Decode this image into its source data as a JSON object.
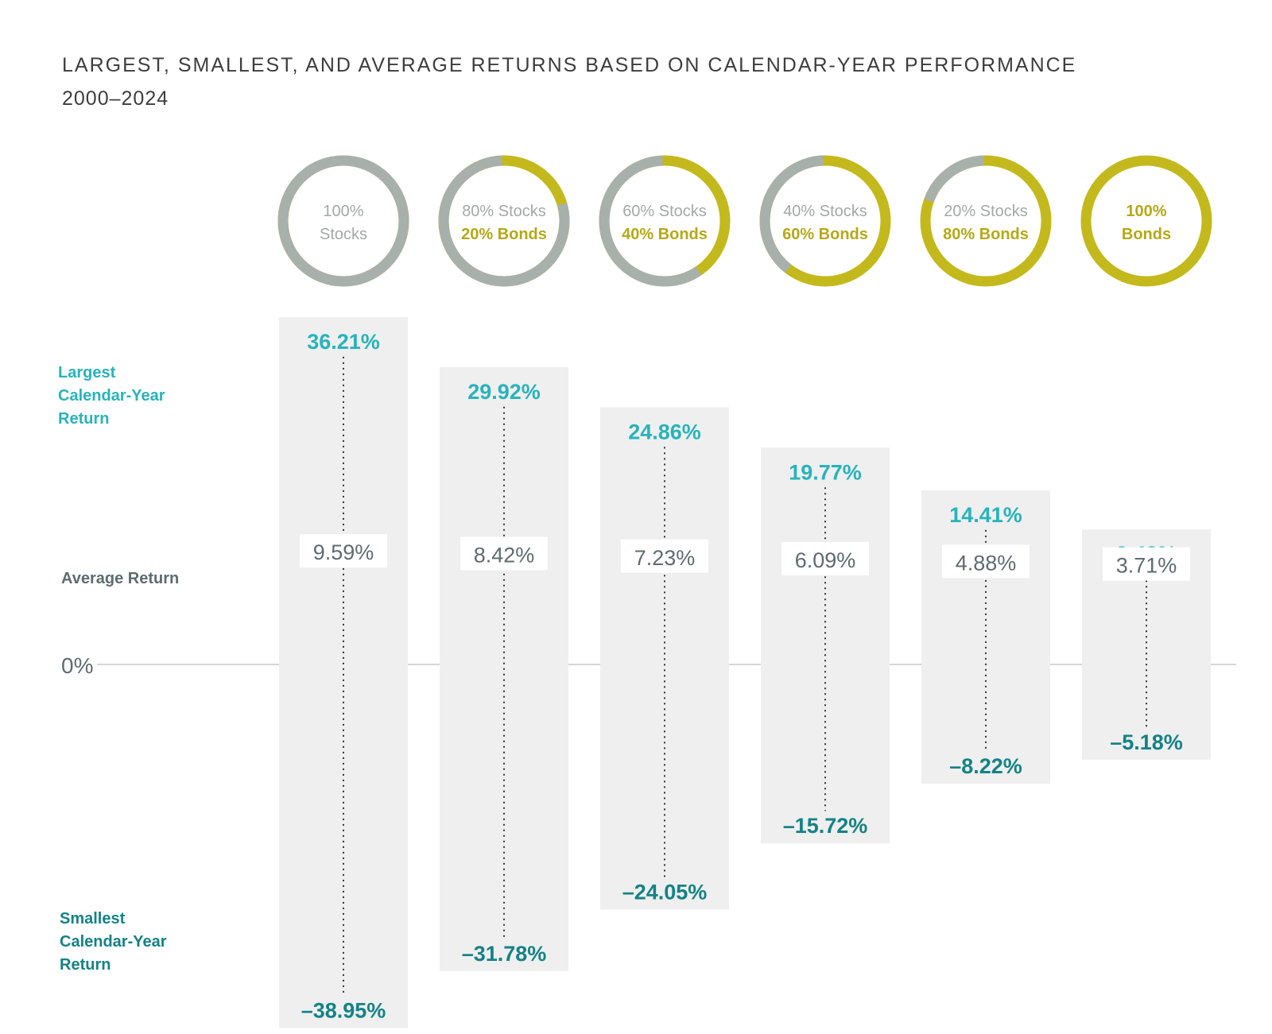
{
  "header": {
    "title": "LARGEST, SMALLEST, AND AVERAGE RETURNS BASED ON CALENDAR-YEAR PERFORMANCE",
    "subtitle": "2000–2024"
  },
  "side_labels": {
    "largest": [
      "Largest",
      "Calendar-Year",
      "Return"
    ],
    "average": "Average Return",
    "zero": "0%",
    "smallest": [
      "Smallest",
      "Calendar-Year",
      "Return"
    ]
  },
  "colors": {
    "stocks_ring": "#a8b0ab",
    "bonds_ring": "#c4b91c",
    "stocks_text": "#a3a8a6",
    "bonds_text": "#b5a817",
    "largest_value": "#27b3bb",
    "smallest_value": "#148286",
    "average_value": "#5f6b6f",
    "bar_background": "#efefef",
    "zero_line": "#c8c8c8"
  },
  "chart_data": {
    "type": "range",
    "categories": [
      {
        "stocks_line": "100%",
        "bonds_line": "Stocks",
        "stocks_share": 100
      },
      {
        "stocks_line": "80% Stocks",
        "bonds_line": "20% Bonds",
        "stocks_share": 80
      },
      {
        "stocks_line": "60% Stocks",
        "bonds_line": "40% Bonds",
        "stocks_share": 60
      },
      {
        "stocks_line": "40% Stocks",
        "bonds_line": "60% Bonds",
        "stocks_share": 40
      },
      {
        "stocks_line": "20% Stocks",
        "bonds_line": "80% Bonds",
        "stocks_share": 20
      },
      {
        "stocks_line": "100%",
        "bonds_line": "Bonds",
        "stocks_share": 0
      }
    ],
    "largest": [
      36.21,
      29.92,
      24.86,
      19.77,
      14.41,
      9.48
    ],
    "average": [
      9.59,
      8.42,
      7.23,
      6.09,
      4.88,
      3.71
    ],
    "smallest": [
      -38.95,
      -31.78,
      -24.05,
      -15.72,
      -8.22,
      -5.18
    ],
    "largest_labels": [
      "36.21%",
      "29.92%",
      "24.86%",
      "19.77%",
      "14.41%",
      "9.48%"
    ],
    "average_labels": [
      "9.59%",
      "8.42%",
      "7.23%",
      "6.09%",
      "4.88%",
      "3.71%"
    ],
    "smallest_labels": [
      "–38.95%",
      "–31.78%",
      "–24.05%",
      "–15.72%",
      "–8.22%",
      "–5.18%"
    ],
    "ylim": [
      -42,
      42
    ],
    "grid": false
  }
}
